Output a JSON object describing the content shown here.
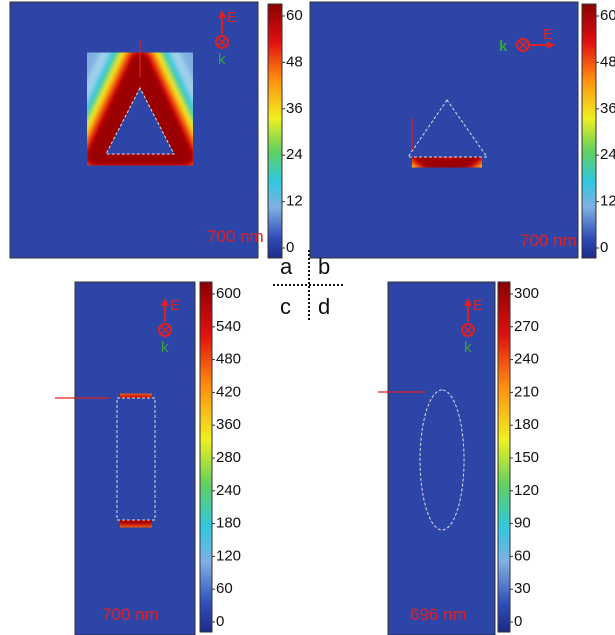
{
  "panels_center_labels": [
    "a",
    "b",
    "c",
    "d"
  ],
  "panels": [
    {
      "wavelength": "700 nm",
      "field": "E",
      "wavevector": "k",
      "colorbar_ticks": [
        "0",
        "12",
        "24",
        "36",
        "48",
        "60"
      ]
    },
    {
      "wavelength": "700 nm",
      "field": "E",
      "wavevector": "k",
      "colorbar_ticks": [
        "0",
        "12",
        "24",
        "36",
        "48",
        "60"
      ]
    },
    {
      "wavelength": "700 nm",
      "field": "E",
      "wavevector": "k",
      "colorbar_ticks": [
        "0",
        "60",
        "120",
        "180",
        "240",
        "280",
        "360",
        "420",
        "480",
        "540",
        "600"
      ]
    },
    {
      "wavelength": "696 nm",
      "field": "E",
      "wavevector": "k",
      "colorbar_ticks": [
        "0",
        "30",
        "60",
        "90",
        "120",
        "150",
        "180",
        "210",
        "240",
        "270",
        "300"
      ]
    }
  ]
}
